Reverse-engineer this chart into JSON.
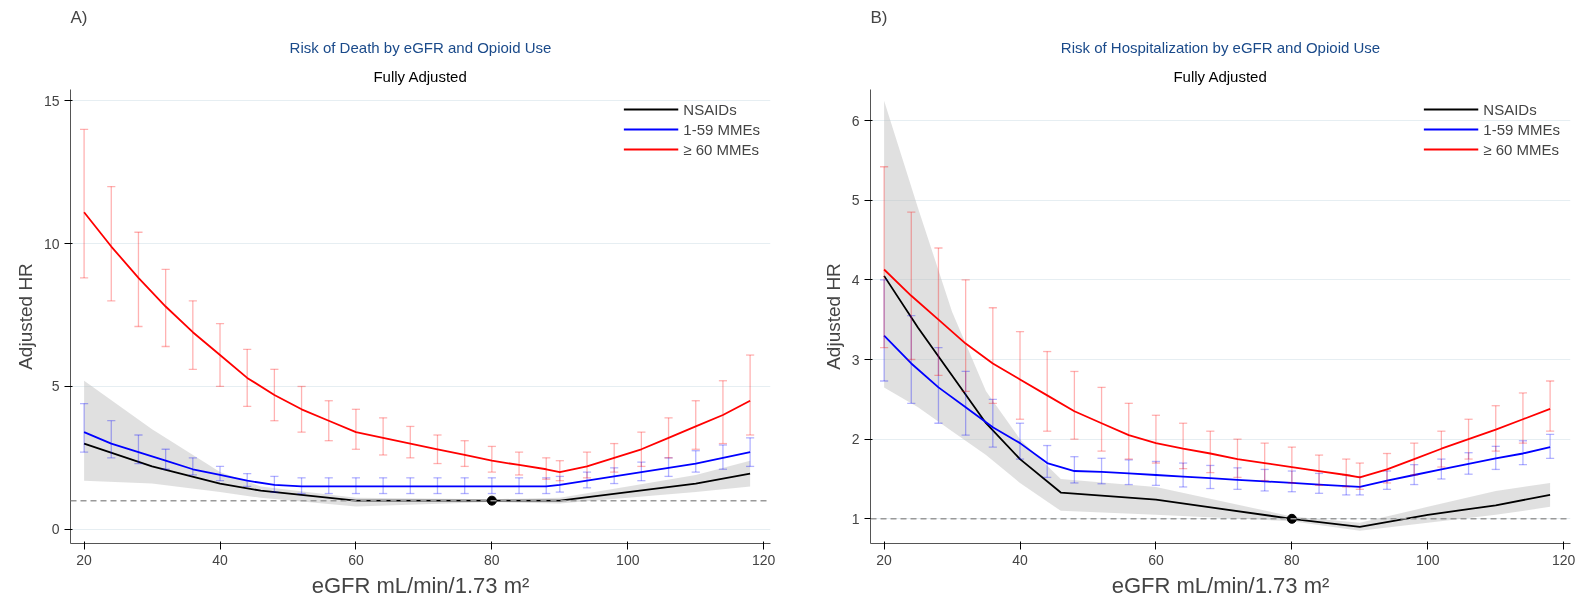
{
  "chart_data": [
    {
      "type": "line",
      "title": "Risk of Death by eGFR and Opioid Use",
      "subtitle": "Fully Adjusted",
      "xlabel": "eGFR mL/min/1.73 m²",
      "ylabel": "Adjusted HR",
      "annotations": [
        "A)"
      ],
      "xlim": [
        18,
        121
      ],
      "ylim": [
        -0.5,
        15.4
      ],
      "xticks": [
        20,
        40,
        60,
        80,
        100,
        120
      ],
      "yticks": [
        0,
        5,
        10,
        15
      ],
      "grid": "y",
      "legend": "top right",
      "ref_lines": [
        {
          "axis": "y",
          "value": 1,
          "color": "#999999",
          "line_style": "dashed"
        }
      ],
      "series": [
        {
          "name": "NSAIDs",
          "color": "#000000",
          "x": [
            20,
            30,
            40,
            46,
            60,
            80,
            90,
            100,
            110,
            118
          ],
          "values": [
            3.0,
            2.2,
            1.6,
            1.35,
            1.0,
            1.0,
            1.0,
            1.3,
            1.6,
            1.95
          ],
          "lower": [
            1.7,
            1.6,
            1.3,
            1.1,
            0.8,
            0.95,
            0.9,
            1.1,
            1.3,
            1.5
          ],
          "upper": [
            5.2,
            3.5,
            2.0,
            1.5,
            1.1,
            1.05,
            1.1,
            1.5,
            1.9,
            2.4
          ]
        },
        {
          "name": "1-59 MMEs",
          "color": "#0000ff",
          "x": [
            20,
            24,
            28,
            32,
            36,
            40,
            44,
            48,
            52,
            56,
            60,
            64,
            68,
            72,
            76,
            80,
            84,
            88,
            90,
            94,
            98,
            102,
            106,
            110,
            114,
            118
          ],
          "values": [
            3.4,
            3.0,
            2.7,
            2.4,
            2.1,
            1.9,
            1.7,
            1.55,
            1.5,
            1.5,
            1.5,
            1.5,
            1.5,
            1.5,
            1.5,
            1.5,
            1.5,
            1.5,
            1.55,
            1.7,
            1.85,
            2.0,
            2.15,
            2.3,
            2.5,
            2.7
          ],
          "errors": [
            [
              2.7,
              4.4
            ],
            [
              2.5,
              3.8
            ],
            [
              2.3,
              3.3
            ],
            [
              2.1,
              2.8
            ],
            [
              1.9,
              2.5
            ],
            [
              1.7,
              2.2
            ],
            [
              1.5,
              1.95
            ],
            [
              1.3,
              1.85
            ],
            [
              1.25,
              1.8
            ],
            [
              1.25,
              1.8
            ],
            [
              1.25,
              1.8
            ],
            [
              1.25,
              1.8
            ],
            [
              1.25,
              1.8
            ],
            [
              1.25,
              1.8
            ],
            [
              1.25,
              1.8
            ],
            [
              1.25,
              1.8
            ],
            [
              1.25,
              1.8
            ],
            [
              1.25,
              1.8
            ],
            [
              1.3,
              1.85
            ],
            [
              1.45,
              2.0
            ],
            [
              1.6,
              2.15
            ],
            [
              1.7,
              2.35
            ],
            [
              1.85,
              2.5
            ],
            [
              2.0,
              2.75
            ],
            [
              2.1,
              2.95
            ],
            [
              2.2,
              3.2
            ]
          ]
        },
        {
          "name": "≥ 60 MMEs",
          "color": "#ff0000",
          "x": [
            20,
            24,
            28,
            32,
            36,
            40,
            44,
            48,
            52,
            56,
            60,
            64,
            68,
            72,
            76,
            80,
            84,
            88,
            90,
            94,
            98,
            102,
            106,
            110,
            114,
            118
          ],
          "values": [
            11.1,
            9.9,
            8.8,
            7.8,
            6.9,
            6.1,
            5.3,
            4.7,
            4.2,
            3.8,
            3.4,
            3.2,
            3.0,
            2.8,
            2.6,
            2.4,
            2.25,
            2.1,
            2.0,
            2.2,
            2.5,
            2.8,
            3.2,
            3.6,
            4.0,
            4.5
          ],
          "errors": [
            [
              8.8,
              14.0
            ],
            [
              8.0,
              12.0
            ],
            [
              7.1,
              10.4
            ],
            [
              6.4,
              9.1
            ],
            [
              5.6,
              8.0
            ],
            [
              5.0,
              7.2
            ],
            [
              4.3,
              6.3
            ],
            [
              3.8,
              5.6
            ],
            [
              3.4,
              5.0
            ],
            [
              3.1,
              4.5
            ],
            [
              2.8,
              4.2
            ],
            [
              2.6,
              3.9
            ],
            [
              2.5,
              3.6
            ],
            [
              2.3,
              3.3
            ],
            [
              2.2,
              3.1
            ],
            [
              2.0,
              2.9
            ],
            [
              1.9,
              2.7
            ],
            [
              1.75,
              2.5
            ],
            [
              1.7,
              2.4
            ],
            [
              1.8,
              2.7
            ],
            [
              2.0,
              3.0
            ],
            [
              2.2,
              3.4
            ],
            [
              2.5,
              3.9
            ],
            [
              2.8,
              4.5
            ],
            [
              3.0,
              5.2
            ],
            [
              3.3,
              6.1
            ]
          ]
        },
        {
          "type": "scatter",
          "marker": "circle",
          "color": "#000000",
          "x": [
            80
          ],
          "values": [
            1
          ]
        }
      ]
    },
    {
      "type": "line",
      "title": "Risk of Hospitalization by eGFR and Opioid Use",
      "subtitle": "Fully Adjusted",
      "xlabel": "eGFR mL/min/1.73 m²",
      "ylabel": "Adjusted HR",
      "annotations": [
        "B)"
      ],
      "xlim": [
        18,
        121
      ],
      "ylim": [
        0.69,
        6.39
      ],
      "xticks": [
        20,
        40,
        60,
        80,
        100,
        120
      ],
      "yticks": [
        1,
        2,
        3,
        4,
        5,
        6
      ],
      "grid": "y",
      "legend": "top right",
      "ref_lines": [
        {
          "axis": "y",
          "value": 1,
          "color": "#999999",
          "line_style": "dashed"
        }
      ],
      "series": [
        {
          "name": "NSAIDs",
          "color": "#000000",
          "x": [
            20,
            25,
            30,
            35,
            40,
            46,
            60,
            80,
            90,
            100,
            110,
            118
          ],
          "values": [
            4.05,
            3.4,
            2.8,
            2.2,
            1.75,
            1.33,
            1.24,
            1.0,
            0.9,
            1.05,
            1.17,
            1.3
          ],
          "lower": [
            2.65,
            2.4,
            2.1,
            1.8,
            1.45,
            1.1,
            1.05,
            0.97,
            0.85,
            0.95,
            1.05,
            1.15
          ],
          "upper": [
            6.25,
            4.9,
            3.6,
            2.6,
            2.0,
            1.5,
            1.4,
            1.03,
            0.95,
            1.15,
            1.35,
            1.45
          ]
        },
        {
          "name": "1-59 MMEs",
          "color": "#0000ff",
          "x": [
            20,
            24,
            28,
            32,
            36,
            40,
            44,
            48,
            52,
            56,
            60,
            64,
            68,
            72,
            76,
            80,
            84,
            88,
            90,
            94,
            98,
            102,
            106,
            110,
            114,
            118
          ],
          "values": [
            3.3,
            2.95,
            2.65,
            2.4,
            2.15,
            1.95,
            1.7,
            1.6,
            1.59,
            1.57,
            1.55,
            1.53,
            1.51,
            1.49,
            1.47,
            1.45,
            1.43,
            1.41,
            1.4,
            1.48,
            1.55,
            1.62,
            1.69,
            1.76,
            1.82,
            1.9
          ],
          "errors": [
            [
              2.73,
              4.0
            ],
            [
              2.45,
              3.55
            ],
            [
              2.2,
              3.15
            ],
            [
              2.05,
              2.85
            ],
            [
              1.9,
              2.5
            ],
            [
              1.75,
              2.2
            ],
            [
              1.52,
              1.92
            ],
            [
              1.45,
              1.78
            ],
            [
              1.44,
              1.76
            ],
            [
              1.43,
              1.74
            ],
            [
              1.42,
              1.72
            ],
            [
              1.4,
              1.7
            ],
            [
              1.38,
              1.67
            ],
            [
              1.37,
              1.64
            ],
            [
              1.35,
              1.62
            ],
            [
              1.34,
              1.6
            ],
            [
              1.32,
              1.57
            ],
            [
              1.3,
              1.55
            ],
            [
              1.3,
              1.53
            ],
            [
              1.37,
              1.6
            ],
            [
              1.43,
              1.68
            ],
            [
              1.5,
              1.75
            ],
            [
              1.56,
              1.83
            ],
            [
              1.62,
              1.91
            ],
            [
              1.68,
              1.98
            ],
            [
              1.76,
              2.06
            ]
          ]
        },
        {
          "name": "≥ 60 MMEs",
          "color": "#ff0000",
          "x": [
            20,
            24,
            28,
            32,
            36,
            40,
            44,
            48,
            52,
            56,
            60,
            64,
            68,
            72,
            76,
            80,
            84,
            88,
            90,
            94,
            98,
            102,
            106,
            110,
            114,
            118
          ],
          "values": [
            4.13,
            3.8,
            3.5,
            3.2,
            2.95,
            2.75,
            2.55,
            2.35,
            2.2,
            2.05,
            1.95,
            1.88,
            1.82,
            1.75,
            1.7,
            1.65,
            1.6,
            1.55,
            1.52,
            1.62,
            1.75,
            1.88,
            2.0,
            2.12,
            2.25,
            2.38
          ],
          "errors": [
            [
              3.15,
              5.42
            ],
            [
              3.0,
              4.85
            ],
            [
              2.8,
              4.4
            ],
            [
              2.6,
              4.0
            ],
            [
              2.45,
              3.65
            ],
            [
              2.25,
              3.35
            ],
            [
              2.1,
              3.1
            ],
            [
              2.0,
              2.85
            ],
            [
              1.85,
              2.65
            ],
            [
              1.75,
              2.45
            ],
            [
              1.7,
              2.3
            ],
            [
              1.63,
              2.2
            ],
            [
              1.58,
              2.1
            ],
            [
              1.52,
              2.0
            ],
            [
              1.48,
              1.95
            ],
            [
              1.45,
              1.9
            ],
            [
              1.42,
              1.8
            ],
            [
              1.4,
              1.75
            ],
            [
              1.37,
              1.7
            ],
            [
              1.45,
              1.82
            ],
            [
              1.55,
              1.95
            ],
            [
              1.65,
              2.1
            ],
            [
              1.75,
              2.25
            ],
            [
              1.85,
              2.42
            ],
            [
              1.95,
              2.58
            ],
            [
              2.1,
              2.73
            ]
          ]
        },
        {
          "type": "scatter",
          "marker": "circle",
          "color": "#000000",
          "x": [
            80
          ],
          "values": [
            1
          ]
        }
      ]
    }
  ]
}
